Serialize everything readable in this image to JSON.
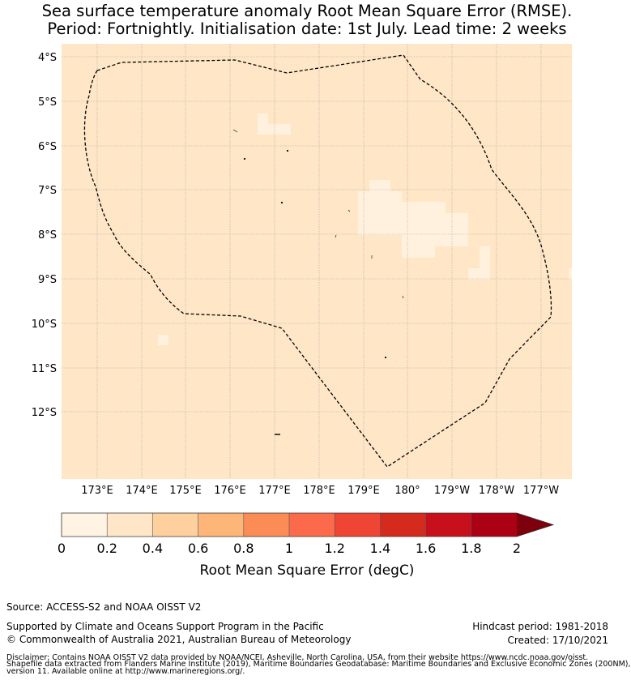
{
  "title": {
    "line1": "Sea surface temperature anomaly Root Mean Square Error (RMSE).",
    "line2": "Period: Fortnightly. Initialisation date: 1st July. Lead time: 2 weeks"
  },
  "map": {
    "lat_ticks": [
      "4°S",
      "5°S",
      "6°S",
      "7°S",
      "8°S",
      "9°S",
      "10°S",
      "11°S",
      "12°S"
    ],
    "lon_ticks": [
      "173°E",
      "174°E",
      "175°E",
      "176°E",
      "177°E",
      "178°E",
      "179°E",
      "180°",
      "179°W",
      "178°W",
      "177°W"
    ],
    "background_color": "#fee6c7",
    "light_patch_color": "#fff1dd",
    "boundary_style": "dashed",
    "boundary_name": ""
  },
  "colorbar": {
    "tick_labels": [
      "0",
      "0.2",
      "0.4",
      "0.6",
      "0.8",
      "1",
      "1.2",
      "1.4",
      "1.6",
      "1.8",
      "2"
    ],
    "colors": [
      "#fff3e3",
      "#fee6c7",
      "#fdd09e",
      "#fdb677",
      "#fc8c55",
      "#fb6a4a",
      "#ef4535",
      "#d52b1e",
      "#c8101c",
      "#ac0014",
      "#7e000d"
    ],
    "extend": "max",
    "label": "Root Mean Square Error (degC)"
  },
  "footer": {
    "source": "Source: ACCESS-S2 and NOAA OISST V2",
    "supported": "Supported by Climate and Oceans Support Program in the Pacific",
    "copyright": "© Commonwealth of Australia 2021, Australian Bureau of Meteorology",
    "hindcast": "Hindcast period: 1981-2018",
    "created": "Created: 17/10/2021",
    "disclaimer1": "Disclaimer: Contains NOAA OISST V2 data provided by NOAA/NCEI, Asheville, North Carolina, USA, from their website https://www.ncdc.noaa.gov/oisst.",
    "disclaimer2": "Shapefile data extracted from Flanders Marine Institute (2019), Maritime Boundaries Geodatabase: Maritime Boundaries and Exclusive Economic Zones (200NM),",
    "disclaimer3": "version 11. Available online at http://www.marineregions.org/."
  }
}
